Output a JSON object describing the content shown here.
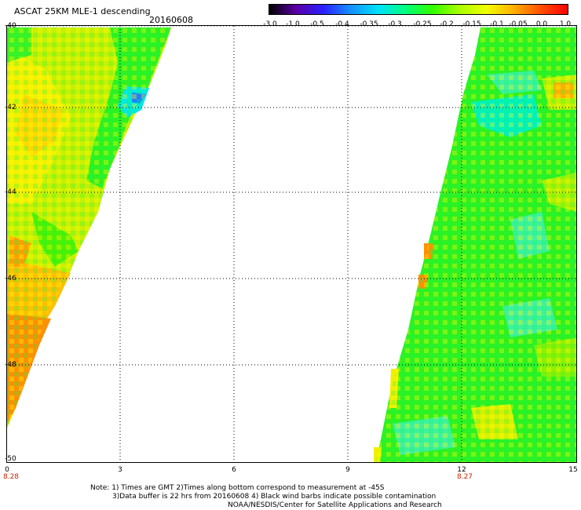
{
  "header": {
    "title": "ASCAT 25KM MLE-1 descending",
    "date": "20160608"
  },
  "colorbar": {
    "labels": [
      "-3.0",
      "-1.0",
      "-0.5",
      "-0.4",
      "-0.35",
      "-0.3",
      "-0.25",
      "-0.2",
      "-0.15",
      "-0.1",
      "-0.05",
      "0.0",
      "1.0"
    ],
    "colors": [
      "#000000",
      "#5a00a8",
      "#2a20ff",
      "#1690ff",
      "#00e0ff",
      "#00ff80",
      "#30ff00",
      "#a8ff00",
      "#f0ff00",
      "#ffb000",
      "#ff5000",
      "#ff0000"
    ]
  },
  "axes": {
    "y_labels": [
      "-40",
      "-42",
      "-44",
      "-46",
      "-48",
      "-50"
    ],
    "x_labels": [
      "0",
      "3",
      "6",
      "9",
      "12",
      "15"
    ],
    "time_labels": [
      "8.28",
      "8.27"
    ]
  },
  "notes": {
    "line1": "Note: 1) Times are GMT 2)Times along bottom correspond to measurement at -45S",
    "line2": "3)Data buffer is 22 hrs from 20160608 4) Black wind barbs indicate possible contamination",
    "line3": "NOAA/NESDIS/Center for Satellite Applications and Research"
  },
  "swath_colors": {
    "green": "#22f01a",
    "yellow_green": "#b8f000",
    "yellow": "#f2f200",
    "orange": "#ffa500",
    "cyan": "#00f0d0",
    "blue": "#1e90ff"
  }
}
